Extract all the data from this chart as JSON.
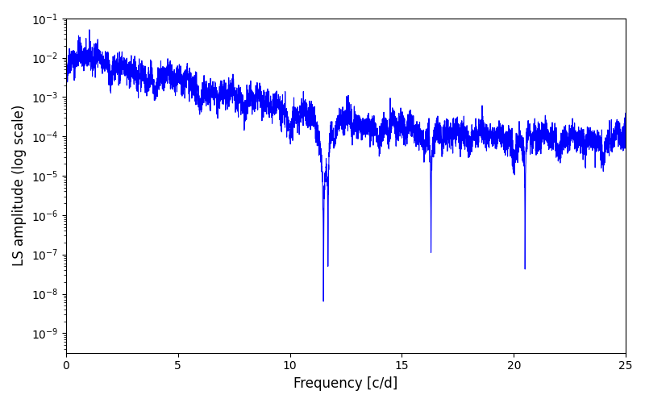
{
  "title": "",
  "xlabel": "Frequency [c/d]",
  "ylabel": "LS amplitude (log scale)",
  "line_color": "#0000ff",
  "line_width": 0.8,
  "xlim": [
    0,
    25
  ],
  "ylim_log": [
    -9.5,
    -1.0
  ],
  "yscale": "log",
  "figsize": [
    8.0,
    5.0
  ],
  "dpi": 100,
  "background_color": "#ffffff",
  "seed": 42,
  "n_points": 5000,
  "freq_max": 25.0
}
